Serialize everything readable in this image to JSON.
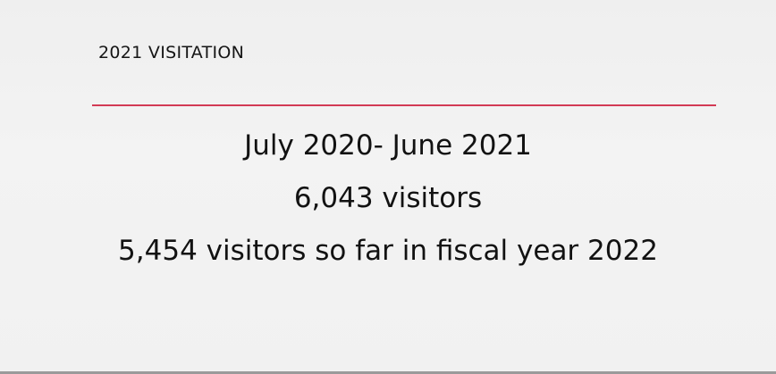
{
  "heading": "2021 VISITATION",
  "lines": [
    "July 2020- June 2021",
    "6,043 visitors",
    "5,454 visitors so far in fiscal year 2022"
  ],
  "colors": {
    "background": "#f1f1f1",
    "divider": "#d23a55",
    "text": "#121212"
  }
}
